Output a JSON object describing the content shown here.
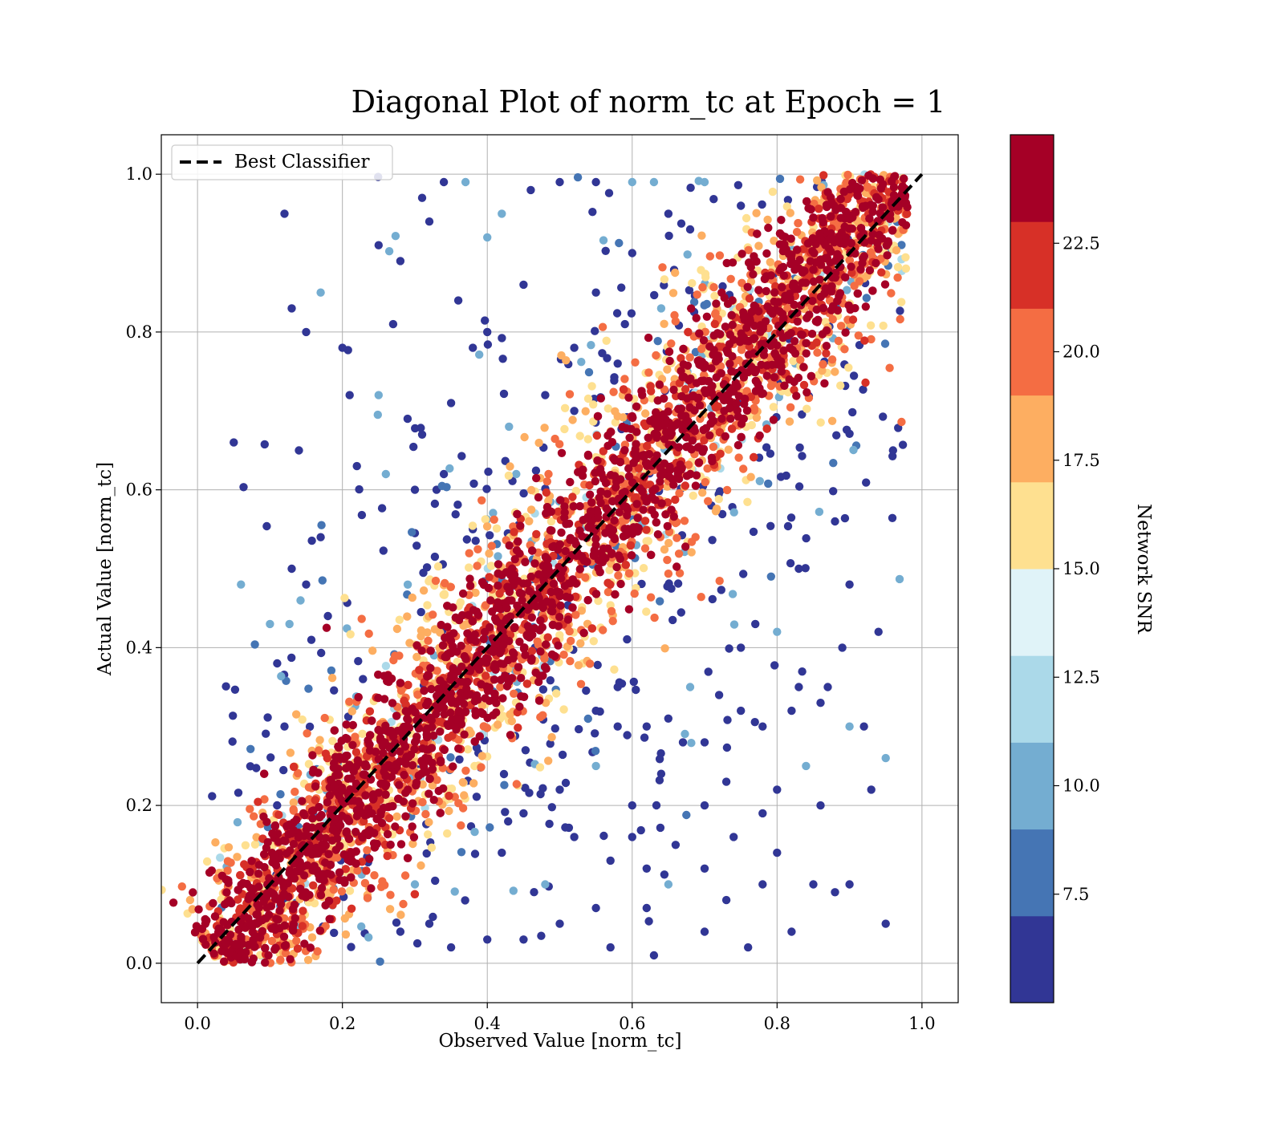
{
  "chart_data": {
    "type": "scatter",
    "title": "Diagonal Plot of norm_tc at Epoch = 1",
    "xlabel": "Observed Value [norm_tc]",
    "ylabel": "Actual Value [norm_tc]",
    "xlim": [
      -0.05,
      1.05
    ],
    "ylim": [
      -0.05,
      1.05
    ],
    "xticks": [
      "0.0",
      "0.2",
      "0.4",
      "0.6",
      "0.8",
      "1.0"
    ],
    "yticks": [
      "0.0",
      "0.2",
      "0.4",
      "0.6",
      "0.8",
      "1.0"
    ],
    "grid": true,
    "legend": {
      "placement": "top-left",
      "entries": [
        "Best Classifier"
      ]
    },
    "reference_line": {
      "name": "Best Classifier",
      "x": [
        0.0,
        1.0
      ],
      "y": [
        0.0,
        1.0
      ],
      "style": "dashed",
      "color": "#000000"
    },
    "colorbar": {
      "label": "Network SNR",
      "ticks": [
        "7.5",
        "10.0",
        "12.5",
        "15.0",
        "17.5",
        "20.0",
        "22.5"
      ],
      "tick_values": [
        7.5,
        10.0,
        12.5,
        15.0,
        17.5,
        20.0,
        22.5
      ],
      "range": [
        5.0,
        25.0
      ],
      "bins": 10,
      "colors": [
        "#313695",
        "#4575b4",
        "#74add1",
        "#abd9e9",
        "#e0f3f8",
        "#fee090",
        "#fdae61",
        "#f46d43",
        "#d73027",
        "#a50026"
      ]
    },
    "series": [
      {
        "color_by": "Network SNR",
        "distribution": "dense diagonal band from (0.03, 0.0) to (0.97, 1.0); high-SNR points cluster on the diagonal, low-SNR points scattered off-diagonal"
      }
    ],
    "outliers": [
      [
        0.05,
        0.66
      ],
      [
        0.12,
        0.95
      ],
      [
        0.13,
        0.83
      ],
      [
        0.15,
        0.8
      ],
      [
        0.17,
        0.85
      ],
      [
        0.2,
        0.78
      ],
      [
        0.21,
        0.72
      ],
      [
        0.25,
        0.72
      ],
      [
        0.25,
        0.91
      ],
      [
        0.27,
        0.81
      ],
      [
        0.28,
        0.89
      ],
      [
        0.31,
        0.97
      ],
      [
        0.32,
        0.94
      ],
      [
        0.34,
        0.99
      ],
      [
        0.37,
        0.99
      ],
      [
        0.4,
        0.92
      ],
      [
        0.42,
        0.95
      ],
      [
        0.46,
        0.98
      ],
      [
        0.5,
        0.99
      ],
      [
        0.55,
        0.99
      ],
      [
        0.6,
        0.99
      ],
      [
        0.63,
        0.99
      ],
      [
        0.7,
        0.99
      ],
      [
        0.36,
        0.84
      ],
      [
        0.38,
        0.78
      ],
      [
        0.4,
        0.8
      ],
      [
        0.29,
        0.69
      ],
      [
        0.31,
        0.67
      ],
      [
        0.33,
        0.6
      ],
      [
        0.26,
        0.62
      ],
      [
        0.22,
        0.63
      ],
      [
        0.14,
        0.65
      ],
      [
        0.06,
        0.48
      ],
      [
        0.1,
        0.43
      ],
      [
        0.13,
        0.5
      ],
      [
        0.15,
        0.48
      ],
      [
        0.17,
        0.54
      ],
      [
        0.18,
        0.44
      ],
      [
        0.11,
        0.38
      ],
      [
        0.12,
        0.3
      ],
      [
        0.52,
        0.78
      ],
      [
        0.55,
        0.85
      ],
      [
        0.45,
        0.86
      ],
      [
        0.48,
        0.72
      ],
      [
        0.52,
        0.7
      ],
      [
        0.58,
        0.76
      ],
      [
        0.6,
        0.9
      ],
      [
        0.65,
        0.95
      ],
      [
        0.68,
        0.93
      ],
      [
        0.75,
        0.96
      ],
      [
        0.43,
        0.68
      ],
      [
        0.44,
        0.62
      ],
      [
        0.38,
        0.55
      ],
      [
        0.34,
        0.62
      ],
      [
        0.3,
        0.6
      ],
      [
        0.35,
        0.71
      ],
      [
        0.95,
        0.05
      ],
      [
        0.93,
        0.22
      ],
      [
        0.95,
        0.26
      ],
      [
        0.9,
        0.3
      ],
      [
        0.87,
        0.35
      ],
      [
        0.94,
        0.42
      ],
      [
        0.9,
        0.48
      ],
      [
        0.96,
        0.65
      ],
      [
        0.88,
        0.56
      ],
      [
        0.83,
        0.5
      ],
      [
        0.86,
        0.33
      ],
      [
        0.84,
        0.25
      ],
      [
        0.8,
        0.22
      ],
      [
        0.78,
        0.19
      ],
      [
        0.73,
        0.23
      ],
      [
        0.7,
        0.28
      ],
      [
        0.68,
        0.35
      ],
      [
        0.75,
        0.4
      ],
      [
        0.8,
        0.42
      ],
      [
        0.82,
        0.32
      ],
      [
        0.85,
        0.1
      ],
      [
        0.88,
        0.09
      ],
      [
        0.9,
        0.1
      ],
      [
        0.82,
        0.04
      ],
      [
        0.76,
        0.02
      ],
      [
        0.7,
        0.04
      ],
      [
        0.65,
        0.1
      ],
      [
        0.62,
        0.12
      ],
      [
        0.6,
        0.16
      ],
      [
        0.57,
        0.13
      ],
      [
        0.55,
        0.07
      ],
      [
        0.5,
        0.05
      ],
      [
        0.45,
        0.03
      ],
      [
        0.4,
        0.03
      ],
      [
        0.35,
        0.02
      ],
      [
        0.32,
        0.05
      ],
      [
        0.3,
        0.1
      ],
      [
        0.28,
        0.04
      ],
      [
        0.42,
        0.14
      ],
      [
        0.45,
        0.19
      ],
      [
        0.48,
        0.1
      ],
      [
        0.52,
        0.16
      ],
      [
        0.5,
        0.22
      ],
      [
        0.55,
        0.25
      ],
      [
        0.58,
        0.3
      ],
      [
        0.6,
        0.2
      ],
      [
        0.64,
        0.24
      ],
      [
        0.66,
        0.15
      ],
      [
        0.7,
        0.12
      ],
      [
        0.73,
        0.08
      ],
      [
        0.78,
        0.1
      ],
      [
        0.8,
        0.14
      ],
      [
        0.62,
        0.3
      ],
      [
        0.67,
        0.28
      ],
      [
        0.72,
        0.34
      ],
      [
        0.75,
        0.32
      ],
      [
        0.78,
        0.3
      ],
      [
        0.58,
        0.35
      ],
      [
        0.55,
        0.32
      ],
      [
        0.62,
        0.07
      ],
      [
        0.63,
        0.01
      ],
      [
        0.57,
        0.02
      ],
      [
        0.7,
        0.2
      ],
      [
        0.74,
        0.16
      ],
      [
        0.77,
        0.43
      ],
      [
        0.83,
        0.35
      ],
      [
        0.86,
        0.2
      ],
      [
        0.92,
        0.3
      ],
      [
        0.89,
        0.4
      ],
      [
        0.64,
        0.83
      ],
      [
        0.59,
        0.81
      ]
    ]
  }
}
